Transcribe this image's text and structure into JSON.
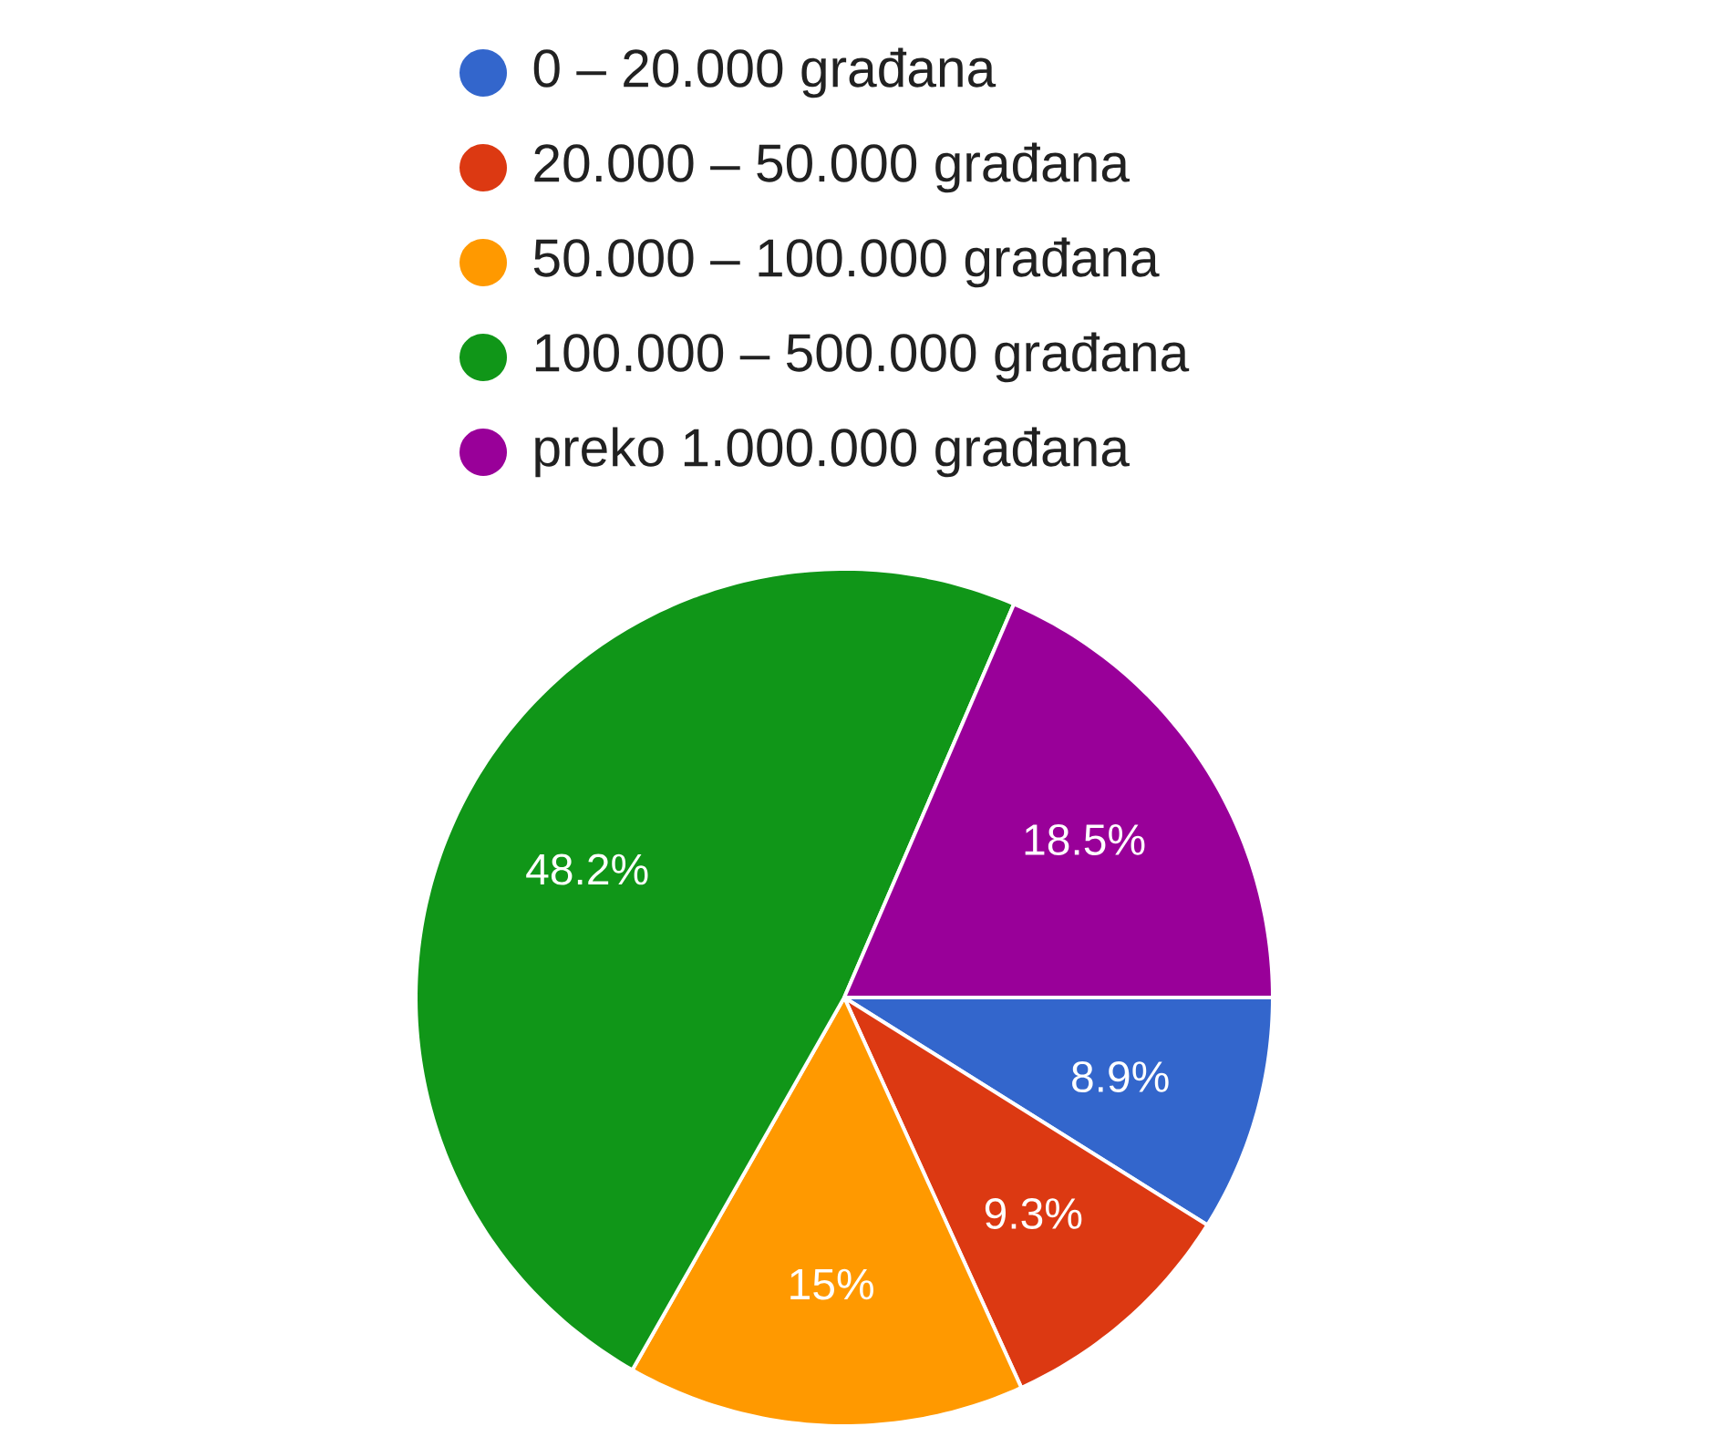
{
  "chart_data": {
    "type": "pie",
    "categories": [
      "0 – 20.000 građana",
      "20.000 – 50.000 građana",
      "50.000 – 100.000 građana",
      "100.000 – 500.000 građana",
      "preko 1.000.000 građana"
    ],
    "values": [
      8.9,
      9.3,
      15,
      48.2,
      18.5
    ],
    "value_labels": [
      "8.9%",
      "9.3%",
      "15%",
      "48.2%",
      "18.5%"
    ],
    "colors": [
      "#3366cc",
      "#dc3912",
      "#ff9900",
      "#109618",
      "#990099"
    ],
    "legend": "top"
  }
}
